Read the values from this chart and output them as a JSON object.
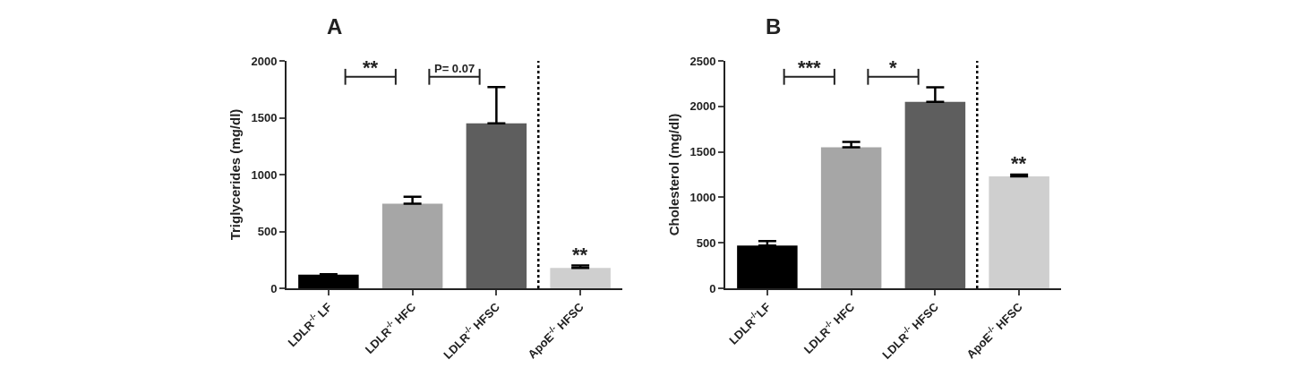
{
  "chart_data": [
    {
      "type": "bar",
      "title": "A",
      "ylabel": "Triglycerides (mg/dl)",
      "categories": [
        "LDLR$^{-/-}$ LF",
        "LDLR$^{-/-}$ HFC",
        "LDLR$^{-/-}$ HFSC",
        "ApoE$^{-/-}$ HFSC"
      ],
      "values": [
        120,
        745,
        1450,
        180
      ],
      "colors": [
        "#000000",
        "#a6a6a6",
        "#5e5e5e",
        "#cfcfcf"
      ],
      "errors": [
        [
          120,
          125
        ],
        [
          745,
          805
        ],
        [
          1450,
          1770
        ],
        [
          180,
          200
        ]
      ],
      "ylim": [
        0,
        2000
      ],
      "yticks": [
        0,
        500,
        1000,
        1500,
        2000
      ],
      "grid": false,
      "annotations": [
        "**",
        "P= 0.07",
        {
          "text": "**",
          "x": "ApoE$^{-/-}$ HFSC",
          "y": 200
        }
      ]
    },
    {
      "type": "bar",
      "title": "B",
      "ylabel": "Cholesterol (mg/dl)",
      "categories": [
        "LDLR$^{-/-}$LF",
        "LDLR$^{-/-}$ HFC",
        "LDLR$^{-/-}$ HFSC",
        "ApoE$^{-/-}$ HFSC"
      ],
      "values": [
        470,
        1550,
        2050,
        1230
      ],
      "colors": [
        "#000000",
        "#a6a6a6",
        "#5e5e5e",
        "#cfcfcf"
      ],
      "errors": [
        [
          470,
          520
        ],
        [
          1550,
          1610
        ],
        [
          2050,
          2210
        ],
        [
          1230,
          1250
        ]
      ],
      "ylim": [
        0,
        2500
      ],
      "yticks": [
        0,
        500,
        1000,
        1500,
        2000,
        2500
      ],
      "grid": false,
      "annotations": [
        "***",
        "*",
        {
          "text": "**",
          "x": "ApoE$^{-/-}$ HFSC",
          "y": 1250
        }
      ]
    }
  ]
}
